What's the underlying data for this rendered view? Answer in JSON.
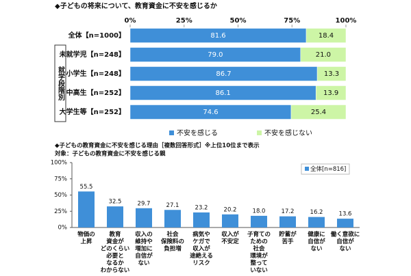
{
  "chart_data": [
    {
      "type": "barh",
      "stacked": true,
      "title": "◆子どもの将来について、教育資金に不安を感じるか",
      "categories": [
        "全体【n=1000】",
        "未就学児【n=248】",
        "小学生【n=248】",
        "中高生【n=252】",
        "大学生等【n=252】"
      ],
      "group_label": "就学段階別",
      "series": [
        {
          "name": "不安を感じる",
          "color": "#3f8fd8",
          "values": [
            81.6,
            79.0,
            86.7,
            86.1,
            74.6
          ],
          "value_labels": [
            "81.6",
            "79.0",
            "86.7",
            "86.1",
            "74.6"
          ]
        },
        {
          "name": "不安を感じない",
          "color": "#cdf5a6",
          "values": [
            18.4,
            21.0,
            13.3,
            13.9,
            25.4
          ],
          "value_labels": [
            "18.4",
            "21.0",
            "13.3",
            "13.9",
            "25.4"
          ]
        }
      ],
      "xlim": [
        0,
        100
      ],
      "xticks": [
        {
          "value": 0,
          "label": "0%"
        },
        {
          "value": 25,
          "label": "25%"
        },
        {
          "value": 50,
          "label": "50%"
        },
        {
          "value": 75,
          "label": "75%"
        },
        {
          "value": 100,
          "label": "100%"
        }
      ],
      "legend": "bottom"
    },
    {
      "type": "bar",
      "title": "◆子どもの教育資金に不安を感じる理由［複数回答形式］※上位10位まで表示",
      "subtitle": "対象：子どもの教育資金に不安を感じる親",
      "categories": [
        [
          "物価の",
          "上昇"
        ],
        [
          "教育",
          "資金が",
          "どのくらい",
          "必要と",
          "なるか",
          "わからない"
        ],
        [
          "収入の",
          "維持や",
          "増加に",
          "自信が",
          "ない"
        ],
        [
          "社会",
          "保険料の",
          "負担増"
        ],
        [
          "病気や",
          "ケガで",
          "収入が",
          "途絶える",
          "リスク"
        ],
        [
          "収入が",
          "不安定"
        ],
        [
          "子育ての",
          "ための",
          "社会",
          "環境が",
          "整って",
          "いない"
        ],
        [
          "貯蓄が",
          "苦手"
        ],
        [
          "健康に",
          "自信が",
          "ない"
        ],
        [
          "働く意欲に",
          "自信が",
          "ない"
        ]
      ],
      "series": [
        {
          "name": "全体[n=816]",
          "color": "#3f8fd8",
          "values": [
            55.5,
            32.5,
            29.7,
            27.1,
            23.2,
            20.2,
            18.0,
            17.2,
            16.2,
            13.6
          ],
          "value_labels": [
            "55.5",
            "32.5",
            "29.7",
            "27.1",
            "23.2",
            "20.2",
            "18.0",
            "17.2",
            "16.2",
            "13.6"
          ]
        }
      ],
      "ylim": [
        0,
        100
      ],
      "yticks": [
        {
          "value": 0,
          "label": "0%"
        },
        {
          "value": 25,
          "label": "25%"
        },
        {
          "value": 50,
          "label": "50%"
        },
        {
          "value": 75,
          "label": "75%"
        },
        {
          "value": 100,
          "label": "100%"
        }
      ],
      "legend": "upper right"
    }
  ]
}
